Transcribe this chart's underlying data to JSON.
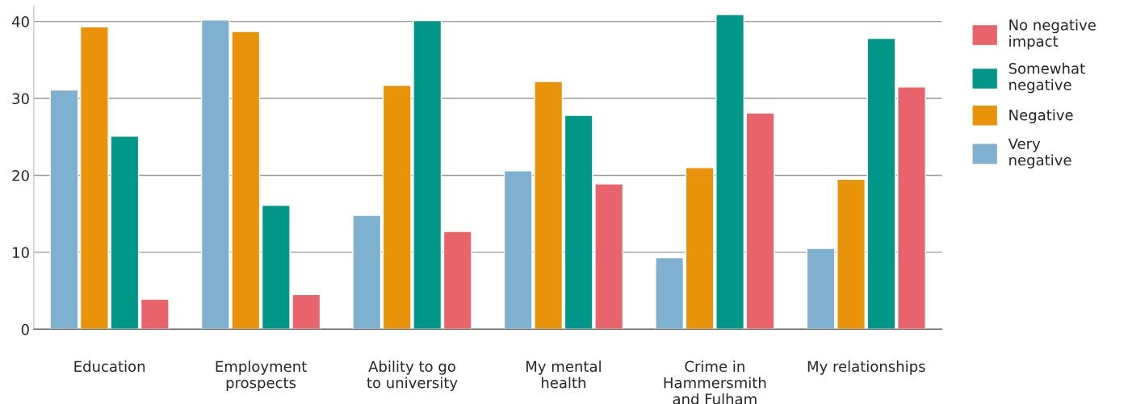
{
  "chart_data": {
    "type": "bar",
    "categories": [
      "Education",
      "Employment\nprospects",
      "Ability to go\nto university",
      "My mental\nhealth",
      "Crime in\nHammersmith\nand Fulham",
      "My relationships"
    ],
    "series": [
      {
        "name": "Very\nnegative",
        "color": "#7fb0cf",
        "values": [
          31.1,
          40.2,
          14.8,
          20.6,
          9.3,
          10.5
        ]
      },
      {
        "name": "Negative",
        "color": "#e8930a",
        "values": [
          39.3,
          38.7,
          31.7,
          32.2,
          21.0,
          19.5
        ]
      },
      {
        "name": "Somewhat\nnegative",
        "color": "#009688",
        "values": [
          25.1,
          16.1,
          40.1,
          27.8,
          40.9,
          37.8
        ]
      },
      {
        "name": "No negative\nimpact",
        "color": "#e8636b",
        "values": [
          3.9,
          4.5,
          12.7,
          18.9,
          28.1,
          31.5
        ]
      }
    ],
    "ylim": [
      0,
      42
    ],
    "yticks": [
      0,
      10,
      20,
      30,
      40
    ],
    "grid": "y",
    "legend": "right"
  }
}
